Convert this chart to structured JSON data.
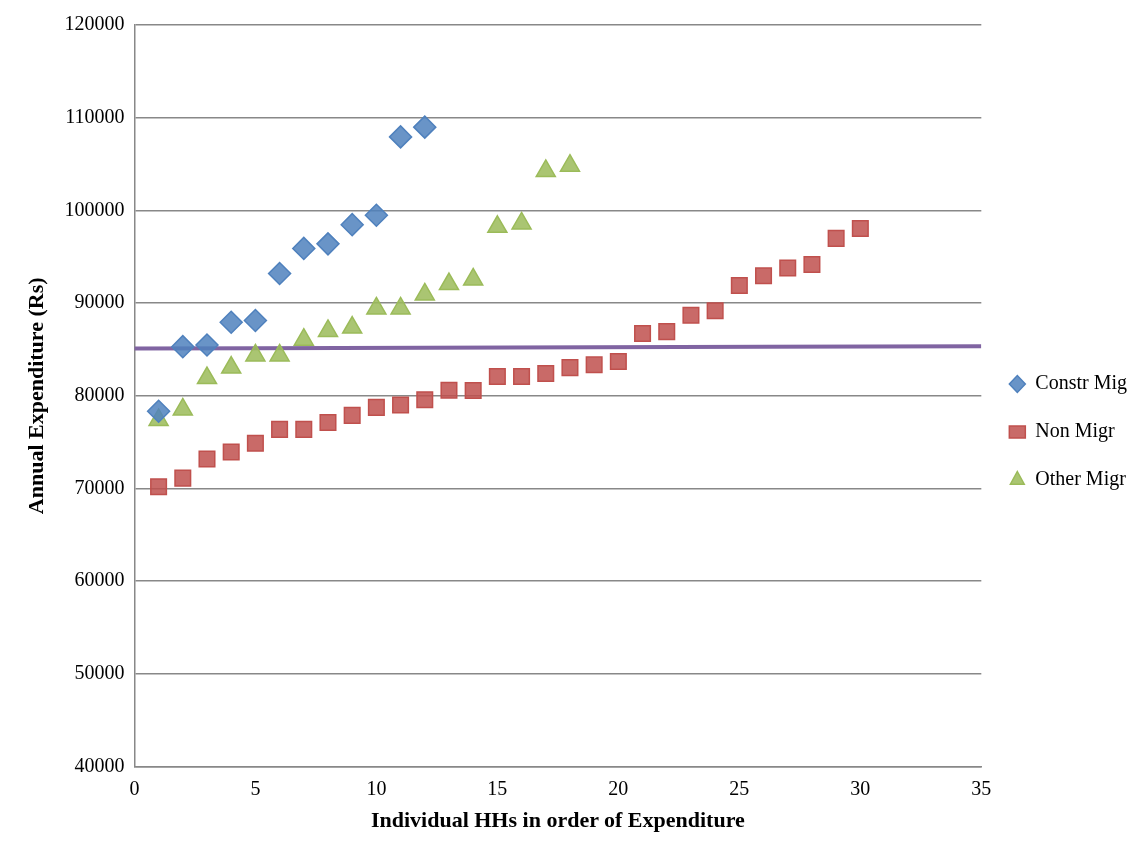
{
  "chart_data": {
    "type": "scatter",
    "xlabel": "Individual HHs in order of Expenditure",
    "ylabel": "Annual Expenditure (Rs)",
    "xlim": [
      0,
      35
    ],
    "xticks": [
      0,
      5,
      10,
      15,
      20,
      25,
      30,
      35
    ],
    "ylim": [
      40000,
      120000
    ],
    "yticks": [
      40000,
      50000,
      60000,
      70000,
      80000,
      90000,
      100000,
      110000,
      120000
    ],
    "grid": "y",
    "legend": "right",
    "series": [
      {
        "name": "Constr Mig",
        "color": "#4f81bd",
        "marker": "diamond",
        "x": [
          1,
          2,
          3,
          4,
          5,
          6,
          7,
          8,
          9,
          10,
          11,
          12
        ],
        "values": [
          78340,
          85300,
          85480,
          87930,
          88120,
          93190,
          95900,
          96390,
          98460,
          99470,
          107930,
          108980
        ]
      },
      {
        "name": "Non Migr",
        "color": "#c0504d",
        "marker": "square",
        "x": [
          1,
          2,
          3,
          4,
          5,
          6,
          7,
          8,
          9,
          10,
          11,
          12,
          13,
          14,
          15,
          16,
          17,
          18,
          19,
          20,
          21,
          22,
          23,
          24,
          25,
          26,
          27,
          28,
          29,
          30
        ],
        "values": [
          70180,
          71120,
          73190,
          73940,
          74880,
          76380,
          76380,
          77130,
          77890,
          78750,
          79000,
          79580,
          80600,
          80580,
          82090,
          82090,
          82400,
          83040,
          83340,
          83710,
          86730,
          86920,
          88690,
          89180,
          91890,
          92950,
          93780,
          94160,
          96980,
          98040
        ]
      },
      {
        "name": "Other Migr",
        "color": "#9bbb59",
        "marker": "triangle",
        "x": [
          1,
          2,
          3,
          4,
          5,
          6,
          7,
          8,
          9,
          10,
          11,
          12,
          13,
          14,
          15,
          16,
          17,
          18
        ],
        "values": [
          77400,
          78530,
          81910,
          83040,
          84360,
          84360,
          86050,
          87000,
          87360,
          89430,
          89430,
          90940,
          92060,
          92550,
          98230,
          98600,
          104260,
          104830
        ]
      },
      {
        "type": "line",
        "color": "#8064a2",
        "marker": "none",
        "x": [
          0,
          35
        ],
        "values": [
          85100,
          85350
        ]
      }
    ]
  }
}
